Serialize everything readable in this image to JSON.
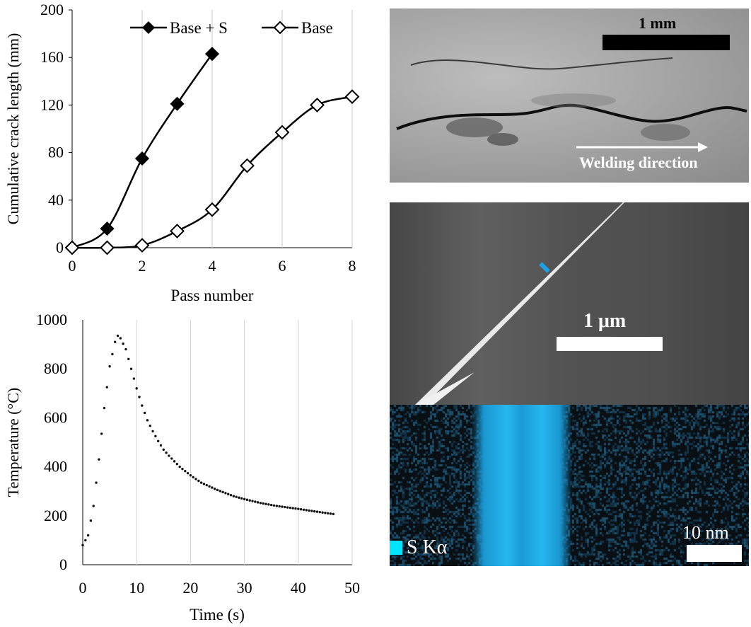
{
  "chart_data": [
    {
      "type": "line",
      "xlabel": "Pass number",
      "ylabel": "Cumulative crack length (mm)",
      "xlim": [
        0,
        8
      ],
      "ylim": [
        0,
        200
      ],
      "xticks": [
        "0",
        "2",
        "4",
        "6",
        "8"
      ],
      "yticks": [
        "0",
        "40",
        "80",
        "120",
        "160",
        "200"
      ],
      "grid": "vertical",
      "legend_position": "top",
      "series": [
        {
          "name": "Base + S",
          "marker": "filled-diamond",
          "x": [
            0,
            1,
            2,
            3,
            4
          ],
          "y": [
            0,
            16,
            75,
            121,
            163
          ]
        },
        {
          "name": "Base",
          "marker": "open-diamond",
          "x": [
            0,
            1,
            2,
            3,
            4,
            5,
            6,
            7,
            8
          ],
          "y": [
            0,
            0,
            2,
            14,
            32,
            69,
            97,
            120,
            127
          ]
        }
      ]
    },
    {
      "type": "scatter",
      "xlabel": "Time (s)",
      "ylabel": "Temperature (°C)",
      "xlim": [
        0,
        50
      ],
      "ylim": [
        0,
        1000
      ],
      "xticks": [
        "0",
        "10",
        "20",
        "30",
        "40",
        "50"
      ],
      "yticks": [
        "0",
        "200",
        "400",
        "600",
        "800",
        "1000"
      ],
      "grid": "vertical",
      "curve": {
        "x": [
          0,
          1,
          2,
          3,
          4,
          5,
          6,
          6.5,
          7,
          8,
          9,
          10,
          11,
          12,
          13,
          14,
          15,
          16,
          18,
          20,
          22,
          25,
          28,
          30,
          33,
          36,
          40,
          43,
          46.5
        ],
        "y": [
          80,
          120,
          240,
          430,
          640,
          810,
          910,
          935,
          925,
          880,
          800,
          720,
          650,
          590,
          545,
          505,
          470,
          445,
          400,
          365,
          335,
          305,
          280,
          268,
          252,
          240,
          228,
          218,
          207
        ]
      }
    }
  ],
  "micrographs": {
    "sem": {
      "scale_label": "1 mm",
      "direction_label": "Welding direction"
    },
    "tem": {
      "scale_label": "1 μm",
      "marker_color": "#1da1e6"
    },
    "eds": {
      "scale_label": "10 nm",
      "element_label": "S Kα",
      "map_color": "#22b8f0"
    }
  }
}
